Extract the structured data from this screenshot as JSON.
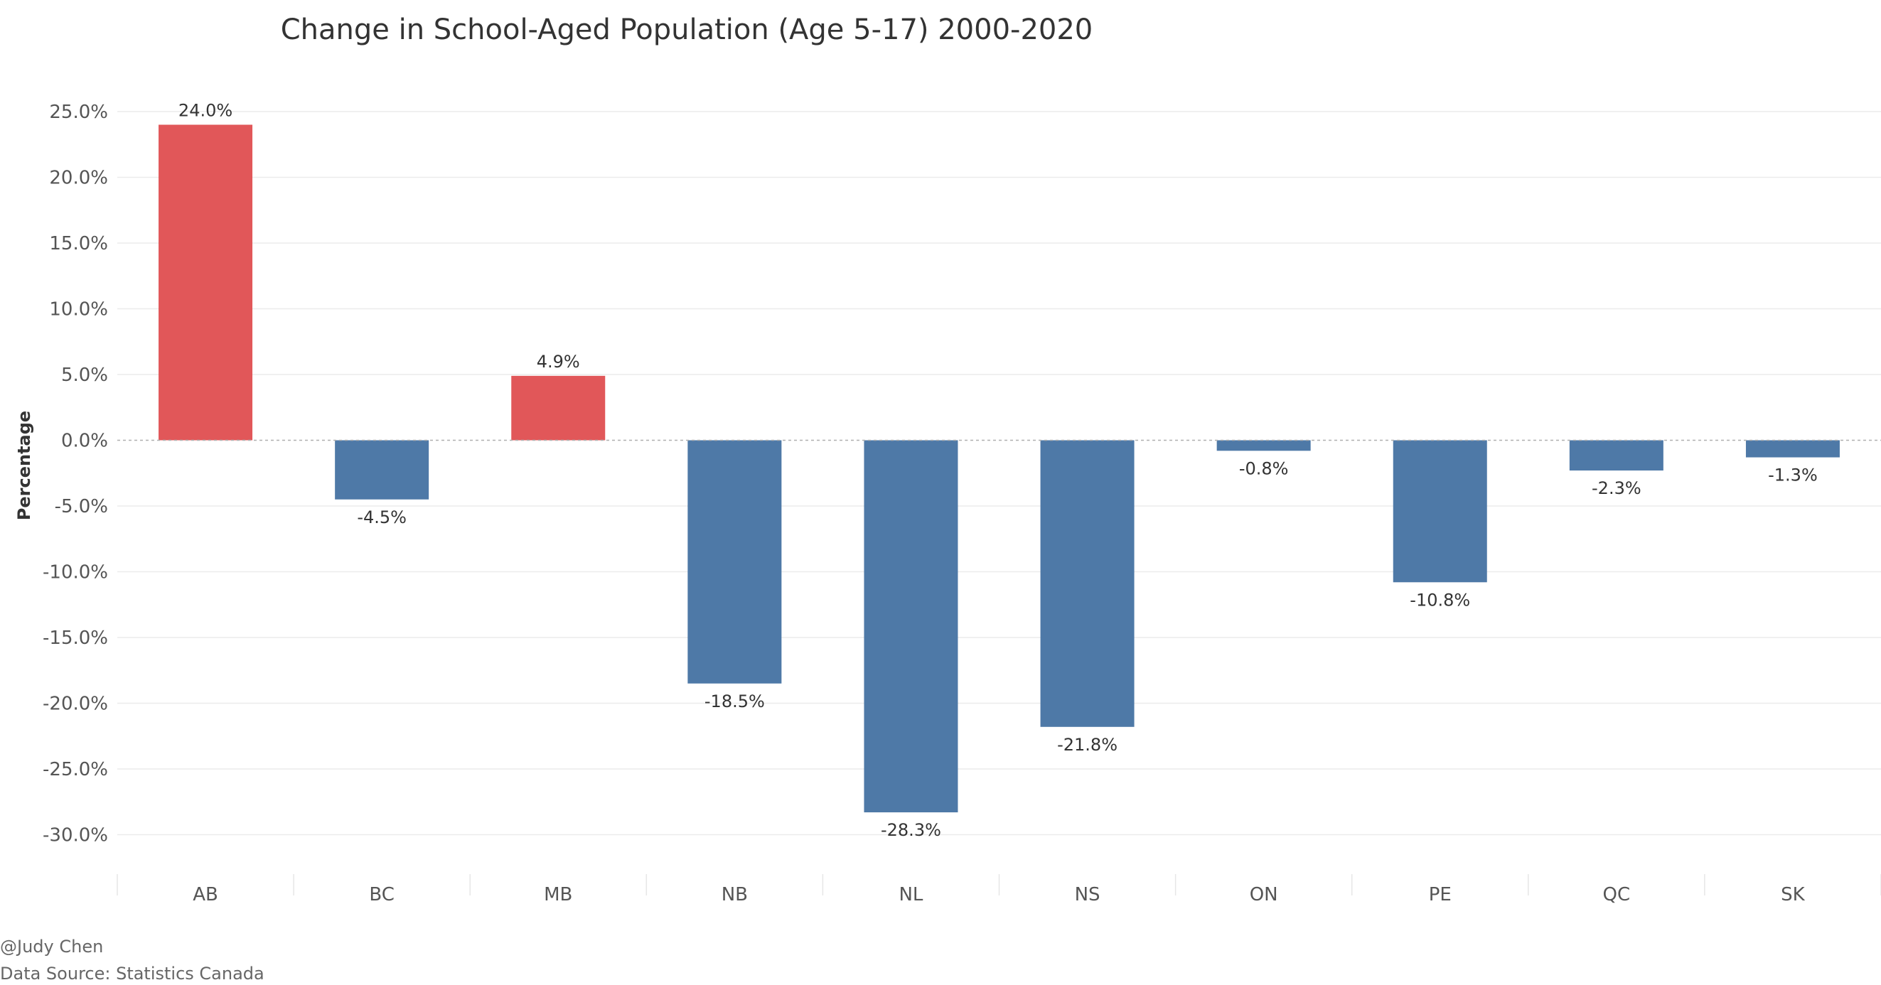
{
  "chart_data": {
    "type": "bar",
    "title": "Change in School-Aged Population (Age 5-17) 2000-2020",
    "xlabel": "",
    "ylabel": "Percentage",
    "ylim": [
      -33,
      27
    ],
    "yticks": [
      25,
      20,
      15,
      10,
      5,
      0,
      -5,
      -10,
      -15,
      -20,
      -25,
      -30
    ],
    "ytick_labels": [
      "25.0%",
      "20.0%",
      "15.0%",
      "10.0%",
      "5.0%",
      "0.0%",
      "-5.0%",
      "-10.0%",
      "-15.0%",
      "-20.0%",
      "-25.0%",
      "-30.0%"
    ],
    "grid": true,
    "categories": [
      "AB",
      "BC",
      "MB",
      "NB",
      "NL",
      "NS",
      "ON",
      "PE",
      "QC",
      "SK"
    ],
    "values": [
      24.0,
      -4.5,
      4.9,
      -18.5,
      -28.3,
      -21.8,
      -0.8,
      -10.8,
      -2.3,
      -1.3
    ],
    "data_labels": [
      "24.0%",
      "-4.5%",
      "4.9%",
      "-18.5%",
      "-28.3%",
      "-21.8%",
      "-0.8%",
      "-10.8%",
      "-2.3%",
      "-1.3%"
    ],
    "colors": {
      "positive": "#e15759",
      "negative": "#4e79a7"
    }
  },
  "footer": {
    "author": "@Judy Chen",
    "source": "Data Source: Statistics Canada"
  }
}
